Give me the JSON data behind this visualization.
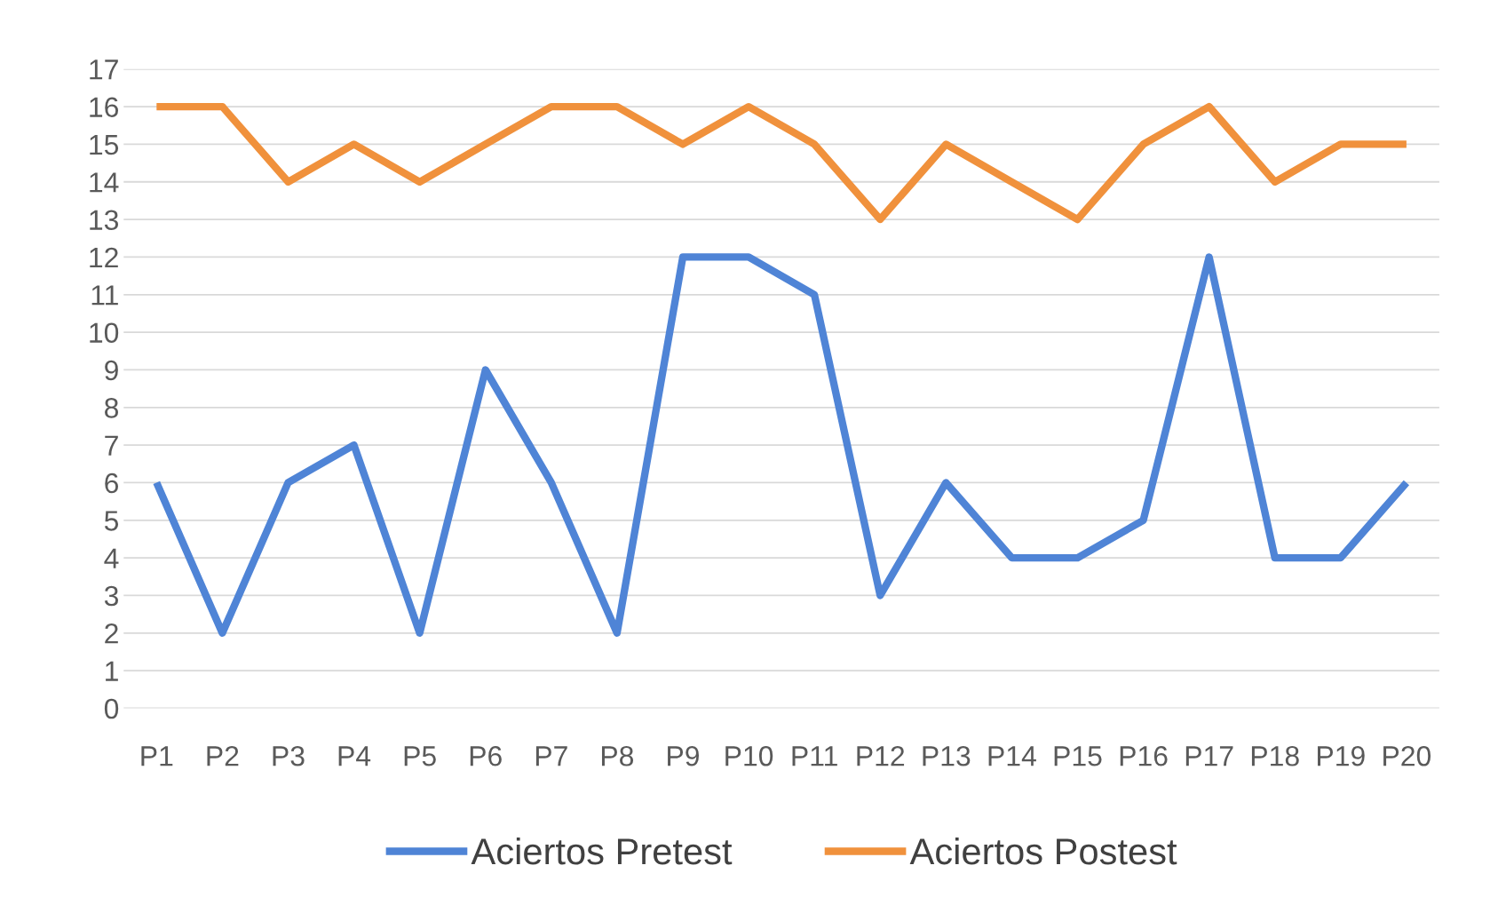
{
  "chart_data": {
    "type": "line",
    "categories": [
      "P1",
      "P2",
      "P3",
      "P4",
      "P5",
      "P6",
      "P7",
      "P8",
      "P9",
      "P10",
      "P11",
      "P12",
      "P13",
      "P14",
      "P15",
      "P16",
      "P17",
      "P18",
      "P19",
      "P20"
    ],
    "series": [
      {
        "name": "Aciertos Pretest",
        "color": "#4f84d6",
        "values": [
          6,
          2,
          6,
          7,
          2,
          9,
          6,
          2,
          12,
          12,
          11,
          3,
          6,
          4,
          4,
          5,
          12,
          4,
          4,
          6
        ]
      },
      {
        "name": "Aciertos Postest",
        "color": "#f0913c",
        "values": [
          16,
          16,
          14,
          15,
          14,
          15,
          16,
          16,
          15,
          16,
          15,
          13,
          15,
          14,
          13,
          15,
          16,
          14,
          15,
          15
        ]
      }
    ],
    "ylim": [
      0,
      17
    ],
    "yticks": [
      0,
      1,
      2,
      3,
      4,
      5,
      6,
      7,
      8,
      9,
      10,
      11,
      12,
      13,
      14,
      15,
      16,
      17
    ],
    "grid": "y",
    "legend": "bottom",
    "marker": "none",
    "line_style": "solid"
  }
}
